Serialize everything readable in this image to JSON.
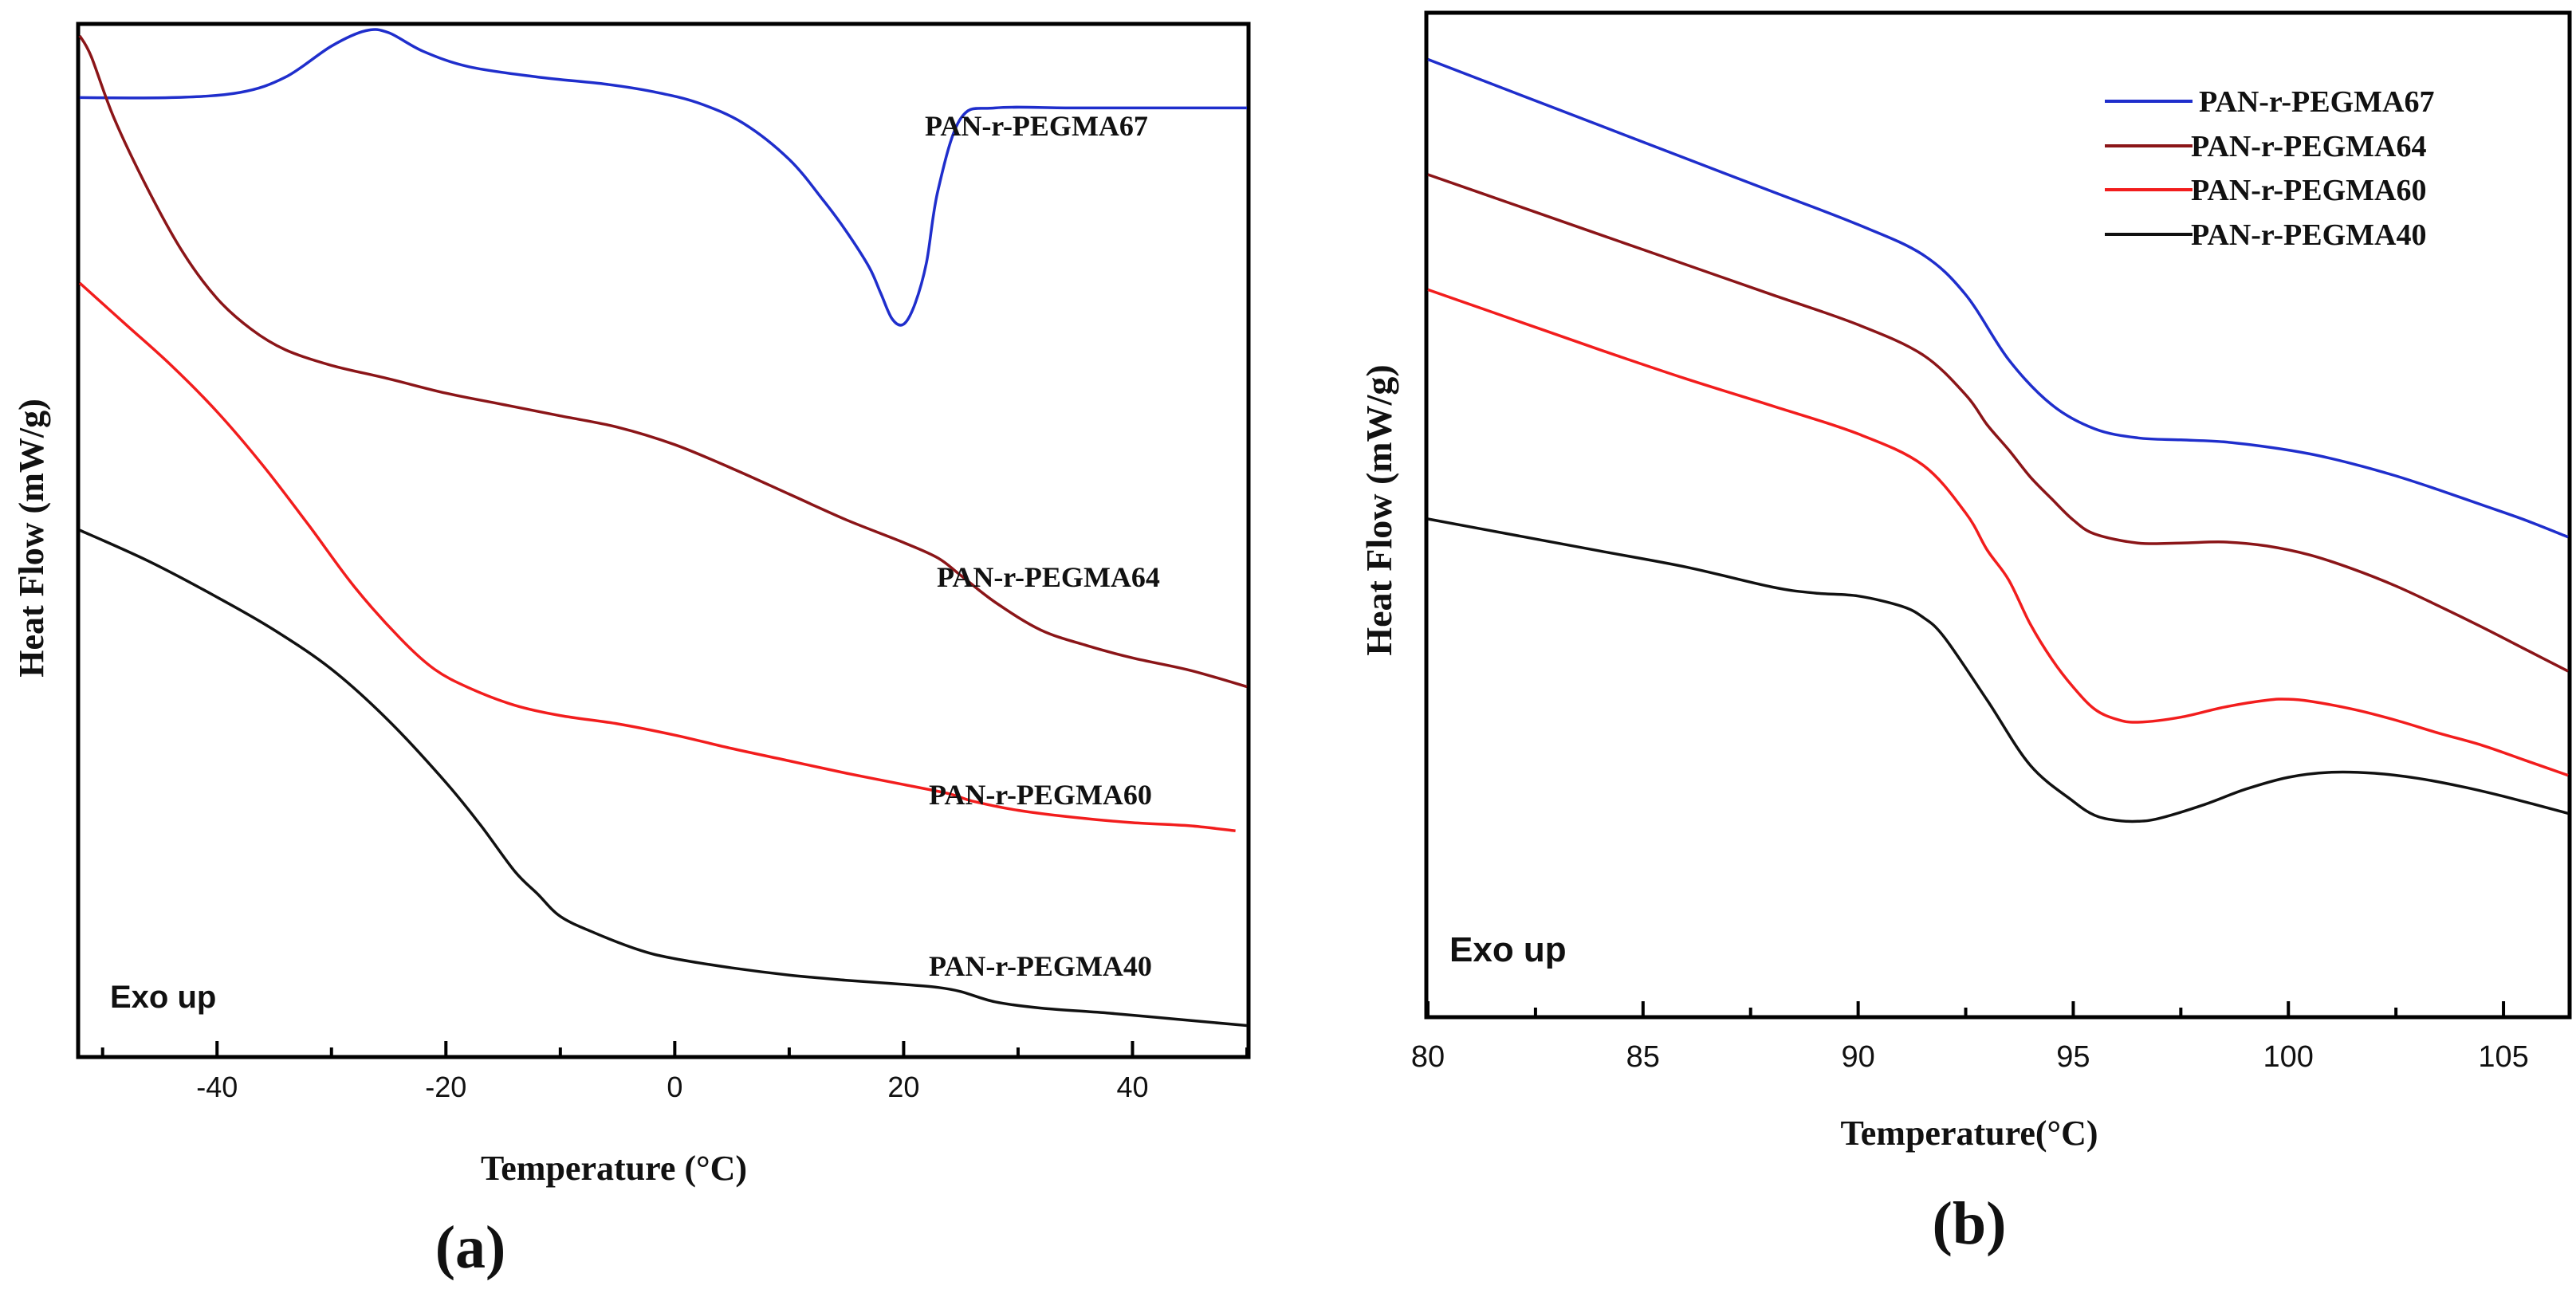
{
  "chart_data": [
    {
      "type": "line",
      "panel_label": "(a)",
      "xlabel": "Temperature (°C)",
      "ylabel": "Heat Flow (mW/g)",
      "annotation": "Exo up",
      "xlim": [
        -52,
        50
      ],
      "ylim": [
        0,
        100
      ],
      "x_ticks": [
        "-40",
        "-20",
        "0",
        "20",
        "40"
      ],
      "y_ticks": [],
      "series": [
        {
          "name": "PAN-r-PEGMA67",
          "color": "#1f2ecc",
          "x": [
            -52,
            -44,
            -38,
            -34,
            -30,
            -27,
            -25,
            -22,
            -18,
            -12,
            -6,
            -2,
            2,
            6,
            10,
            13,
            15,
            17,
            18,
            19,
            20,
            21,
            22,
            23,
            25,
            28,
            35,
            45,
            50
          ],
          "y": [
            93,
            93,
            93.5,
            95,
            98,
            99.5,
            99.3,
            97.5,
            96,
            95,
            94.3,
            93.6,
            92.5,
            90.5,
            87,
            83,
            80,
            76.5,
            74,
            71.5,
            71,
            73,
            77,
            84,
            91,
            92,
            92,
            92,
            92
          ]
        },
        {
          "name": "PAN-r-PEGMA64",
          "color": "#8b1518",
          "x": [
            -52,
            -51,
            -49,
            -46,
            -43,
            -40,
            -37,
            -34,
            -30,
            -25,
            -20,
            -15,
            -10,
            -5,
            0,
            5,
            10,
            15,
            20,
            23,
            25,
            28,
            32,
            36,
            40,
            45,
            50
          ],
          "y": [
            99,
            97,
            91,
            84,
            78,
            73.5,
            70.5,
            68.5,
            67,
            65.7,
            64.3,
            63.2,
            62.1,
            61,
            59.3,
            57,
            54.5,
            52,
            49.8,
            48.3,
            46.6,
            44,
            41.3,
            39.8,
            38.6,
            37.4,
            35.8
          ]
        },
        {
          "name": "PAN-r-PEGMA60",
          "color": "#f21d1d",
          "x": [
            -52,
            -48,
            -44,
            -40,
            -36,
            -32,
            -28,
            -24,
            -21,
            -18,
            -14,
            -10,
            -5,
            0,
            5,
            10,
            15,
            20,
            24,
            26,
            30,
            35,
            40,
            45,
            49
          ],
          "y": [
            75,
            71,
            67,
            62.5,
            57.3,
            51.5,
            45.5,
            40.5,
            37.5,
            35.7,
            34,
            33,
            32.2,
            31.1,
            29.8,
            28.6,
            27.4,
            26.3,
            25.4,
            24.7,
            23.8,
            23.1,
            22.6,
            22.3,
            21.8
          ]
        },
        {
          "name": "PAN-r-PEGMA40",
          "color": "#111111",
          "x": [
            -52,
            -46,
            -40,
            -35,
            -30,
            -25,
            -20,
            -17,
            -14,
            -12,
            -10,
            -7,
            -3,
            0,
            5,
            10,
            15,
            20,
            23,
            25,
            28,
            32,
            38,
            44,
            50
          ],
          "y": [
            51,
            48,
            44.5,
            41.3,
            37.5,
            32.5,
            26.5,
            22.4,
            17.9,
            15.7,
            13.5,
            11.9,
            10.2,
            9.4,
            8.5,
            7.8,
            7.3,
            6.9,
            6.6,
            6.2,
            5.2,
            4.6,
            4.1,
            3.5,
            2.9
          ]
        }
      ],
      "series_labels": [
        "PAN-r-PEGMA67",
        "PAN-r-PEGMA64",
        "PAN-r-PEGMA60",
        "PAN-r-PEGMA40"
      ]
    },
    {
      "type": "line",
      "panel_label": "(b)",
      "xlabel": "Temperature(°C)",
      "ylabel": "Heat Flow (mW/g)",
      "annotation": "Exo up",
      "xlim": [
        80,
        106.5
      ],
      "ylim": [
        0,
        100
      ],
      "x_ticks": [
        "80",
        "85",
        "90",
        "95",
        "100",
        "105"
      ],
      "y_ticks": [],
      "legend": "top-right",
      "series": [
        {
          "name": "PAN-r-PEGMA67",
          "color": "#1f2ecc",
          "x": [
            80,
            82,
            84,
            86,
            88,
            90,
            91.5,
            92.5,
            93.5,
            94.5,
            95.5,
            96.5,
            97.5,
            98.5,
            99.5,
            100.5,
            101.5,
            102.5,
            103.5,
            104.5,
            105.5,
            106.5
          ],
          "y": [
            95.5,
            92.2,
            88.9,
            85.6,
            82.3,
            79,
            76,
            72,
            65.5,
            61,
            58.6,
            57.7,
            57.5,
            57.3,
            56.8,
            56.1,
            55.1,
            53.9,
            52.5,
            51,
            49.5,
            47.8
          ]
        },
        {
          "name": "PAN-r-PEGMA64",
          "color": "#8b1518",
          "x": [
            80,
            82,
            84,
            86,
            88,
            90,
            91.5,
            92.5,
            93,
            93.5,
            94,
            94.5,
            95,
            95.5,
            96.5,
            97.5,
            98.5,
            99.5,
            100.5,
            101.5,
            102.5,
            103.5,
            104.5,
            105.5,
            106.5
          ],
          "y": [
            84,
            81,
            78,
            75,
            72,
            69,
            66,
            62,
            59,
            56.5,
            53.8,
            51.6,
            49.5,
            48.1,
            47.2,
            47.2,
            47.3,
            46.9,
            46,
            44.6,
            42.9,
            40.9,
            38.8,
            36.6,
            34.4
          ]
        },
        {
          "name": "PAN-r-PEGMA60",
          "color": "#f21d1d",
          "x": [
            80,
            82,
            84,
            86,
            88,
            90,
            91.5,
            92.5,
            93,
            93.5,
            94,
            94.5,
            95,
            95.5,
            96,
            96.5,
            97.5,
            98.5,
            99.5,
            100,
            100.5,
            101.5,
            102.5,
            103.5,
            104.5,
            105.5,
            106.5
          ],
          "y": [
            72.5,
            69.5,
            66.5,
            63.6,
            60.9,
            58.1,
            55,
            50.2,
            46.5,
            43.5,
            39.1,
            35.6,
            32.8,
            30.6,
            29.6,
            29.3,
            29.8,
            30.8,
            31.5,
            31.6,
            31.4,
            30.6,
            29.5,
            28.2,
            27,
            25.5,
            24
          ]
        },
        {
          "name": "PAN-r-PEGMA40",
          "color": "#111111",
          "x": [
            80,
            82,
            84,
            86,
            88,
            89,
            90,
            91,
            91.5,
            92,
            93,
            94,
            95,
            95.5,
            96,
            96.5,
            97,
            98,
            99,
            100,
            101,
            102,
            103,
            104,
            105,
            106.5
          ],
          "y": [
            49.6,
            48,
            46.4,
            44.8,
            42.8,
            42.2,
            41.9,
            40.9,
            39.8,
            37.8,
            31.5,
            25,
            21.4,
            20,
            19.5,
            19.4,
            19.7,
            21,
            22.6,
            23.8,
            24.3,
            24.2,
            23.7,
            22.9,
            21.9,
            20.2
          ]
        }
      ],
      "series_labels": [
        "PAN-r-PEGMA67",
        "PAN-r-PEGMA64",
        "PAN-r-PEGMA60",
        "PAN-r-PEGMA40"
      ]
    }
  ]
}
